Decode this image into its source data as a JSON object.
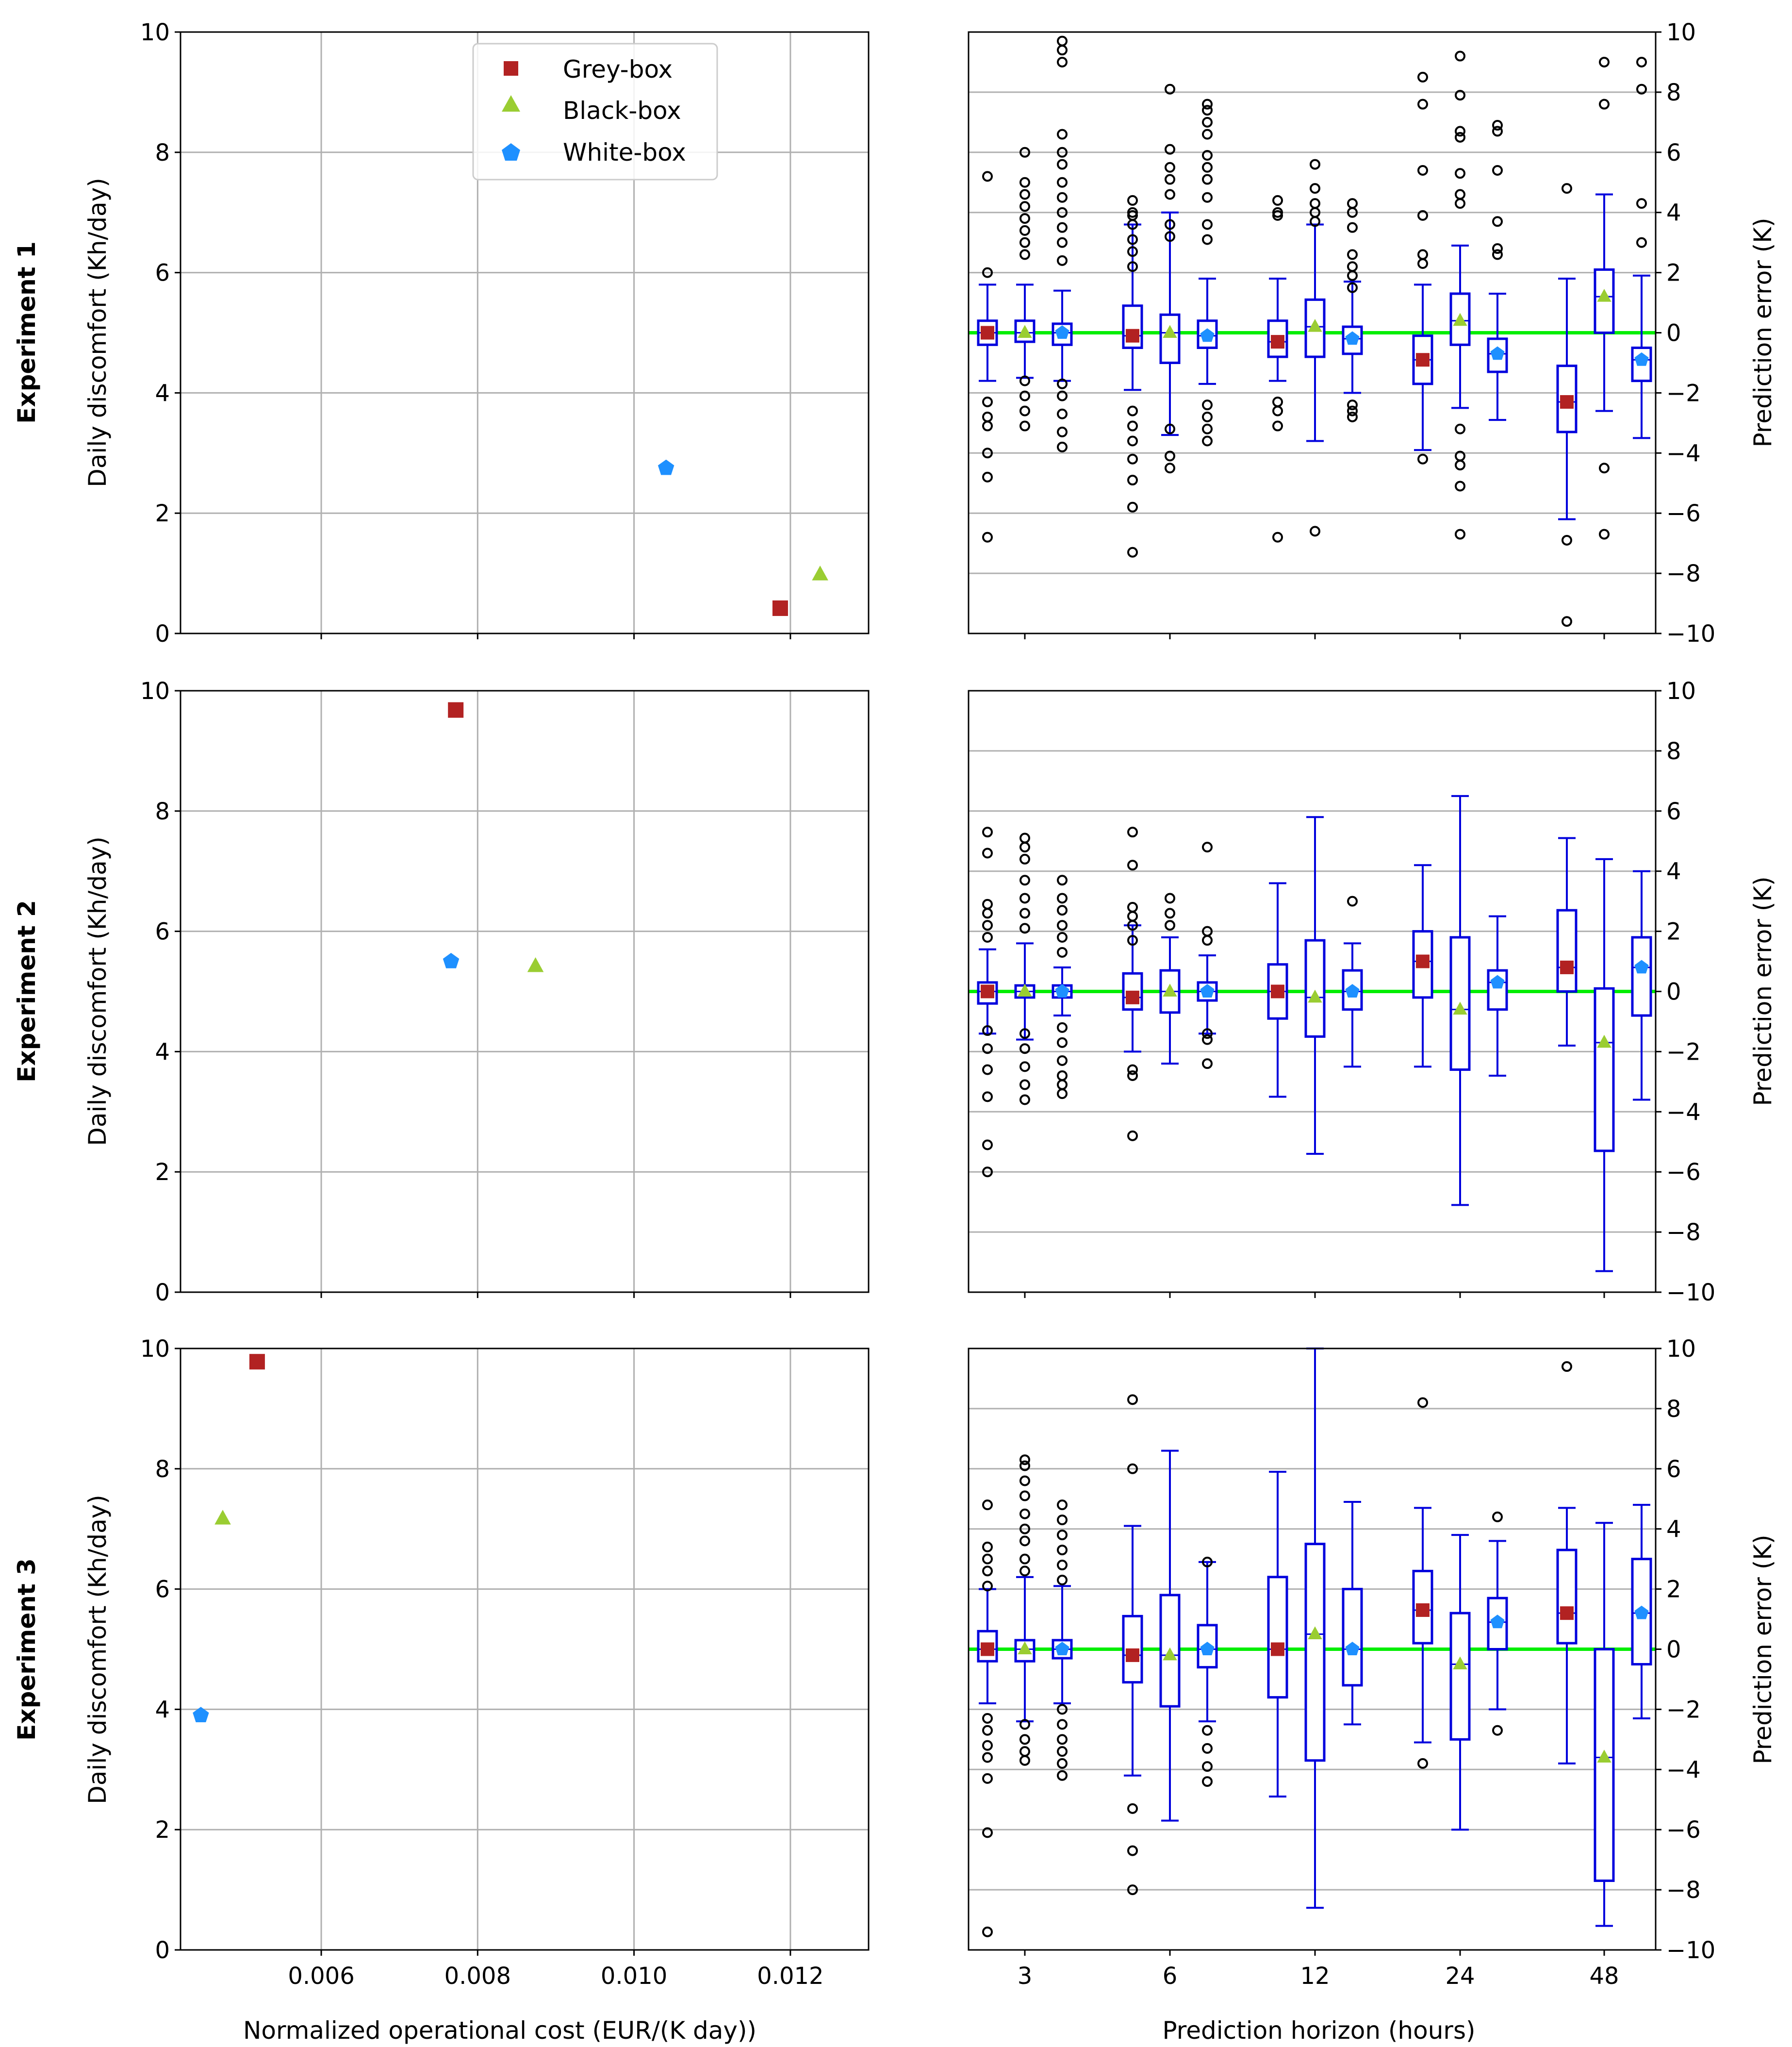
{
  "legend": {
    "items": [
      {
        "label": "Grey-box",
        "color": "#b22222",
        "marker": "square"
      },
      {
        "label": "Black-box",
        "color": "#9acd32",
        "marker": "triangle"
      },
      {
        "label": "White-box",
        "color": "#1e90ff",
        "marker": "pentagon"
      }
    ]
  },
  "row_labels": [
    "Experiment 1",
    "Experiment 2",
    "Experiment 3"
  ],
  "left_ylabel": "Daily discomfort (Kh/day)",
  "left_xlabel": "Normalized operational cost (EUR/(K day))",
  "right_ylabel": "Prediction error (K)",
  "right_xlabel": "Prediction horizon (hours)",
  "chart_data": [
    {
      "type": "scatter",
      "panel": "Experiment 1 - cost vs discomfort",
      "xlabel": "Normalized operational cost (EUR/(K day))",
      "ylabel": "Daily discomfort (Kh/day)",
      "xlim": [
        0.0042,
        0.013
      ],
      "ylim": [
        0,
        10
      ],
      "xticks": [
        0.006,
        0.008,
        0.01,
        0.012
      ],
      "xtick_labels": [
        "0.006",
        "0.008",
        "0.010",
        "0.012"
      ],
      "yticks": [
        0,
        2,
        4,
        6,
        8,
        10
      ],
      "ytick_labels": [
        "0",
        "2",
        "4",
        "6",
        "8",
        "10"
      ],
      "grid": true,
      "legend_position": "top-center",
      "series": [
        {
          "name": "Grey-box",
          "x": [
            0.01187
          ],
          "y": [
            0.42
          ]
        },
        {
          "name": "Black-box",
          "x": [
            0.01238
          ],
          "y": [
            0.98
          ]
        },
        {
          "name": "White-box",
          "x": [
            0.01041
          ],
          "y": [
            2.75
          ]
        }
      ]
    },
    {
      "type": "box",
      "panel": "Experiment 1 - prediction error",
      "xlabel": "Prediction horizon (hours)",
      "ylabel": "Prediction error (K)",
      "categories": [
        "3",
        "6",
        "12",
        "24",
        "48"
      ],
      "ylim": [
        -10,
        10
      ],
      "yticks": [
        -10,
        -8,
        -6,
        -4,
        -2,
        0,
        2,
        4,
        6,
        8,
        10
      ],
      "ytick_labels": [
        "−10",
        "−8",
        "−6",
        "−4",
        "−2",
        "0",
        "2",
        "4",
        "6",
        "8",
        "10"
      ],
      "grid": "y",
      "series": [
        {
          "name": "Grey-box",
          "q1": [
            -0.4,
            -0.5,
            -0.8,
            -1.7,
            -3.3
          ],
          "q3": [
            0.4,
            0.9,
            0.4,
            -0.1,
            -1.1
          ],
          "mean": [
            0.0,
            -0.1,
            -0.3,
            -0.9,
            -2.3
          ],
          "whisker_low": [
            -1.6,
            -1.9,
            -1.6,
            -3.9,
            -6.2
          ],
          "whisker_high": [
            1.6,
            3.6,
            1.8,
            1.6,
            1.8
          ]
        },
        {
          "name": "Black-box",
          "q1": [
            -0.3,
            -1.0,
            -0.8,
            -0.4,
            0.0
          ],
          "q3": [
            0.4,
            0.6,
            1.1,
            1.3,
            2.1
          ],
          "mean": [
            0.0,
            0.0,
            0.2,
            0.4,
            1.2
          ],
          "whisker_low": [
            -1.5,
            -3.4,
            -3.6,
            -2.5,
            -2.6
          ],
          "whisker_high": [
            1.6,
            4.0,
            3.6,
            2.9,
            4.6
          ]
        },
        {
          "name": "White-box",
          "q1": [
            -0.4,
            -0.5,
            -0.7,
            -1.3,
            -1.6
          ],
          "q3": [
            0.3,
            0.4,
            0.2,
            -0.2,
            -0.5
          ],
          "mean": [
            0.0,
            -0.1,
            -0.2,
            -0.7,
            -0.9
          ],
          "whisker_low": [
            -1.6,
            -1.7,
            -2.0,
            -2.9,
            -3.5
          ],
          "whisker_high": [
            1.4,
            1.8,
            1.7,
            1.3,
            1.9
          ]
        }
      ],
      "outliers": {
        "Grey-box": [
          [
            2,
            5.2,
            -2.3,
            -2.8,
            -3.1,
            -4.0,
            -4.8,
            -6.8
          ],
          [
            4.4,
            4.0,
            3.9,
            3.6,
            3.1,
            2.7,
            2.2,
            -2.6,
            -3.1,
            -3.6,
            -4.2,
            -4.9,
            -5.8,
            -7.3
          ],
          [
            4.4,
            4.0,
            3.9,
            -2.3,
            -2.6,
            -3.1,
            -6.8
          ],
          [
            8.5,
            7.6,
            5.4,
            3.9,
            2.6,
            2.3,
            -4.2
          ],
          [
            4.8,
            -6.9,
            -9.6
          ]
        ],
        "Black-box": [
          [
            6.0,
            5.0,
            4.6,
            4.2,
            3.8,
            3.4,
            3.0,
            2.6,
            -1.6,
            -2.1,
            -2.6,
            -3.1
          ],
          [
            8.1,
            6.1,
            5.5,
            5.1,
            4.6,
            3.6,
            3.2,
            -3.2,
            -4.1,
            -4.5
          ],
          [
            5.6,
            4.8,
            4.3,
            4.0,
            3.7,
            -6.6
          ],
          [
            9.2,
            7.9,
            6.7,
            6.5,
            5.3,
            4.6,
            4.3,
            -3.2,
            -4.1,
            -4.4,
            -5.1,
            -6.7
          ],
          [
            9.0,
            7.6,
            -4.5,
            -6.7
          ]
        ],
        "White-box": [
          [
            9.7,
            9.4,
            9.0,
            6.6,
            6.0,
            5.6,
            5.0,
            4.5,
            4.0,
            3.5,
            3.0,
            2.4,
            -1.7,
            -2.1,
            -2.7,
            -3.3,
            -3.8
          ],
          [
            7.6,
            7.4,
            7.0,
            6.6,
            5.9,
            5.5,
            5.1,
            4.5,
            3.6,
            3.1,
            -2.4,
            -2.8,
            -3.2,
            -3.6
          ],
          [
            4.3,
            4.0,
            3.5,
            2.6,
            2.2,
            1.9,
            1.5,
            -2.4,
            -2.6,
            -2.8
          ],
          [
            6.9,
            6.7,
            5.4,
            3.7,
            2.8,
            2.6
          ],
          [
            9.0,
            8.1,
            4.3,
            3.0
          ]
        ]
      }
    },
    {
      "type": "scatter",
      "panel": "Experiment 2 - cost vs discomfort",
      "xlabel": "Normalized operational cost (EUR/(K day))",
      "ylabel": "Daily discomfort (Kh/day)",
      "xlim": [
        0.0042,
        0.013
      ],
      "ylim": [
        0,
        10
      ],
      "xticks": [
        0.006,
        0.008,
        0.01,
        0.012
      ],
      "xtick_labels": [
        "0.006",
        "0.008",
        "0.010",
        "0.012"
      ],
      "yticks": [
        0,
        2,
        4,
        6,
        8,
        10
      ],
      "ytick_labels": [
        "0",
        "2",
        "4",
        "6",
        "8",
        "10"
      ],
      "grid": true,
      "series": [
        {
          "name": "Grey-box",
          "x": [
            0.00772
          ],
          "y": [
            9.68
          ]
        },
        {
          "name": "Black-box",
          "x": [
            0.00874
          ],
          "y": [
            5.42
          ]
        },
        {
          "name": "White-box",
          "x": [
            0.00766
          ],
          "y": [
            5.5
          ]
        }
      ]
    },
    {
      "type": "box",
      "panel": "Experiment 2 - prediction error",
      "xlabel": "Prediction horizon (hours)",
      "ylabel": "Prediction error (K)",
      "categories": [
        "3",
        "6",
        "12",
        "24",
        "48"
      ],
      "ylim": [
        -10,
        10
      ],
      "yticks": [
        -10,
        -8,
        -6,
        -4,
        -2,
        0,
        2,
        4,
        6,
        8,
        10
      ],
      "ytick_labels": [
        "−10",
        "−8",
        "−6",
        "−4",
        "−2",
        "0",
        "2",
        "4",
        "6",
        "8",
        "10"
      ],
      "grid": "y",
      "series": [
        {
          "name": "Grey-box",
          "q1": [
            -0.4,
            -0.6,
            -0.9,
            -0.2,
            0.0
          ],
          "q3": [
            0.3,
            0.6,
            0.9,
            2.0,
            2.7
          ],
          "mean": [
            0.0,
            -0.2,
            0.0,
            1.0,
            0.8
          ],
          "whisker_low": [
            -1.4,
            -2.0,
            -3.5,
            -2.5,
            -1.8
          ],
          "whisker_high": [
            1.4,
            2.2,
            3.6,
            4.2,
            5.1
          ]
        },
        {
          "name": "Black-box",
          "q1": [
            -0.2,
            -0.7,
            -1.5,
            -2.6,
            -5.3
          ],
          "q3": [
            0.2,
            0.7,
            1.7,
            1.8,
            0.1
          ],
          "mean": [
            0.0,
            0.0,
            -0.2,
            -0.6,
            -1.7
          ],
          "whisker_low": [
            -1.6,
            -2.4,
            -5.4,
            -7.1,
            -9.3
          ],
          "whisker_high": [
            1.6,
            1.8,
            5.8,
            6.5,
            4.4
          ]
        },
        {
          "name": "White-box",
          "q1": [
            -0.2,
            -0.3,
            -0.6,
            -0.6,
            -0.8
          ],
          "q3": [
            0.2,
            0.3,
            0.7,
            0.7,
            1.8
          ],
          "mean": [
            0.0,
            0.0,
            0.0,
            0.3,
            0.8
          ],
          "whisker_low": [
            -0.8,
            -1.4,
            -2.5,
            -2.8,
            -3.6
          ],
          "whisker_high": [
            0.8,
            1.2,
            1.6,
            2.5,
            4.0
          ]
        }
      ],
      "outliers": {
        "Grey-box": [
          [
            5.3,
            4.6,
            2.9,
            2.6,
            2.2,
            1.8,
            -1.3,
            -1.9,
            -2.6,
            -3.5,
            -5.1,
            -6.0
          ],
          [
            5.3,
            4.2,
            2.8,
            2.5,
            2.2,
            1.7,
            -2.6,
            -2.8,
            -4.8
          ],
          [],
          [],
          []
        ],
        "Black-box": [
          [
            5.1,
            4.8,
            4.4,
            3.7,
            3.1,
            2.6,
            2.1,
            -1.4,
            -1.9,
            -2.5,
            -3.1,
            -3.6
          ],
          [
            3.1,
            2.6,
            2.2
          ],
          [],
          [],
          []
        ],
        "White-box": [
          [
            3.7,
            3.1,
            2.7,
            2.2,
            1.8,
            1.3,
            -1.2,
            -1.7,
            -2.3,
            -2.8,
            -3.1,
            -3.4
          ],
          [
            4.8,
            2.0,
            1.7,
            -1.4,
            -1.6,
            -2.4
          ],
          [
            3.0
          ],
          [],
          []
        ]
      }
    },
    {
      "type": "scatter",
      "panel": "Experiment 3 - cost vs discomfort",
      "xlabel": "Normalized operational cost (EUR/(K day))",
      "ylabel": "Daily discomfort (Kh/day)",
      "xlim": [
        0.0042,
        0.013
      ],
      "ylim": [
        0,
        10
      ],
      "xticks": [
        0.006,
        0.008,
        0.01,
        0.012
      ],
      "xtick_labels": [
        "0.006",
        "0.008",
        "0.010",
        "0.012"
      ],
      "yticks": [
        0,
        2,
        4,
        6,
        8,
        10
      ],
      "ytick_labels": [
        "0",
        "2",
        "4",
        "6",
        "8",
        "10"
      ],
      "grid": true,
      "series": [
        {
          "name": "Grey-box",
          "x": [
            0.00518
          ],
          "y": [
            9.78
          ]
        },
        {
          "name": "Black-box",
          "x": [
            0.00474
          ],
          "y": [
            7.17
          ]
        },
        {
          "name": "White-box",
          "x": [
            0.00446
          ],
          "y": [
            3.9
          ]
        }
      ]
    },
    {
      "type": "box",
      "panel": "Experiment 3 - prediction error",
      "xlabel": "Prediction horizon (hours)",
      "ylabel": "Prediction error (K)",
      "categories": [
        "3",
        "6",
        "12",
        "24",
        "48"
      ],
      "ylim": [
        -10,
        10
      ],
      "yticks": [
        -10,
        -8,
        -6,
        -4,
        -2,
        0,
        2,
        4,
        6,
        8,
        10
      ],
      "ytick_labels": [
        "−10",
        "−8",
        "−6",
        "−4",
        "−2",
        "0",
        "2",
        "4",
        "6",
        "8",
        "10"
      ],
      "grid": "y",
      "series": [
        {
          "name": "Grey-box",
          "q1": [
            -0.4,
            -1.1,
            -1.6,
            0.2,
            0.2
          ],
          "q3": [
            0.6,
            1.1,
            2.4,
            2.6,
            3.3
          ],
          "mean": [
            0.0,
            -0.2,
            0.0,
            1.3,
            1.2
          ],
          "whisker_low": [
            -1.8,
            -4.2,
            -4.9,
            -3.1,
            -3.8
          ],
          "whisker_high": [
            2.0,
            4.1,
            5.9,
            4.7,
            4.7
          ]
        },
        {
          "name": "Black-box",
          "q1": [
            -0.4,
            -1.9,
            -3.7,
            -3.0,
            -7.7
          ],
          "q3": [
            0.3,
            1.8,
            3.5,
            1.2,
            0.0
          ],
          "mean": [
            0.0,
            -0.2,
            0.5,
            -0.5,
            -3.6
          ],
          "whisker_low": [
            -2.4,
            -5.7,
            -8.6,
            -6.0,
            -9.2
          ],
          "whisker_high": [
            2.4,
            6.6,
            10.0,
            3.8,
            4.2
          ]
        },
        {
          "name": "White-box",
          "q1": [
            -0.3,
            -0.6,
            -1.2,
            0.0,
            -0.5
          ],
          "q3": [
            0.3,
            0.8,
            2.0,
            1.7,
            3.0
          ],
          "mean": [
            0.0,
            0.0,
            0.0,
            0.9,
            1.2
          ],
          "whisker_low": [
            -1.8,
            -2.4,
            -2.5,
            -2.0,
            -2.3
          ],
          "whisker_high": [
            2.1,
            2.9,
            4.9,
            3.6,
            4.8
          ]
        }
      ],
      "outliers": {
        "Grey-box": [
          [
            4.8,
            3.4,
            3.0,
            2.6,
            2.1,
            -2.3,
            -2.7,
            -3.2,
            -3.6,
            -4.3,
            -6.1,
            -9.4
          ],
          [
            8.3,
            6.0,
            -5.3,
            -6.7,
            -8.0
          ],
          [],
          [
            8.2,
            -3.8
          ],
          [
            9.4
          ]
        ],
        "Black-box": [
          [
            6.3,
            6.1,
            5.6,
            5.1,
            4.5,
            4.0,
            3.6,
            3.0,
            2.6,
            -2.5,
            -3.0,
            -3.4,
            -3.7
          ],
          [],
          [],
          [],
          []
        ],
        "White-box": [
          [
            4.8,
            4.3,
            3.8,
            3.3,
            2.8,
            2.3,
            -2.0,
            -2.5,
            -3.0,
            -3.4,
            -3.8,
            -4.2
          ],
          [
            2.9,
            -2.7,
            -3.3,
            -3.9,
            -4.4
          ],
          [],
          [
            4.4,
            -2.7
          ],
          []
        ]
      }
    }
  ]
}
